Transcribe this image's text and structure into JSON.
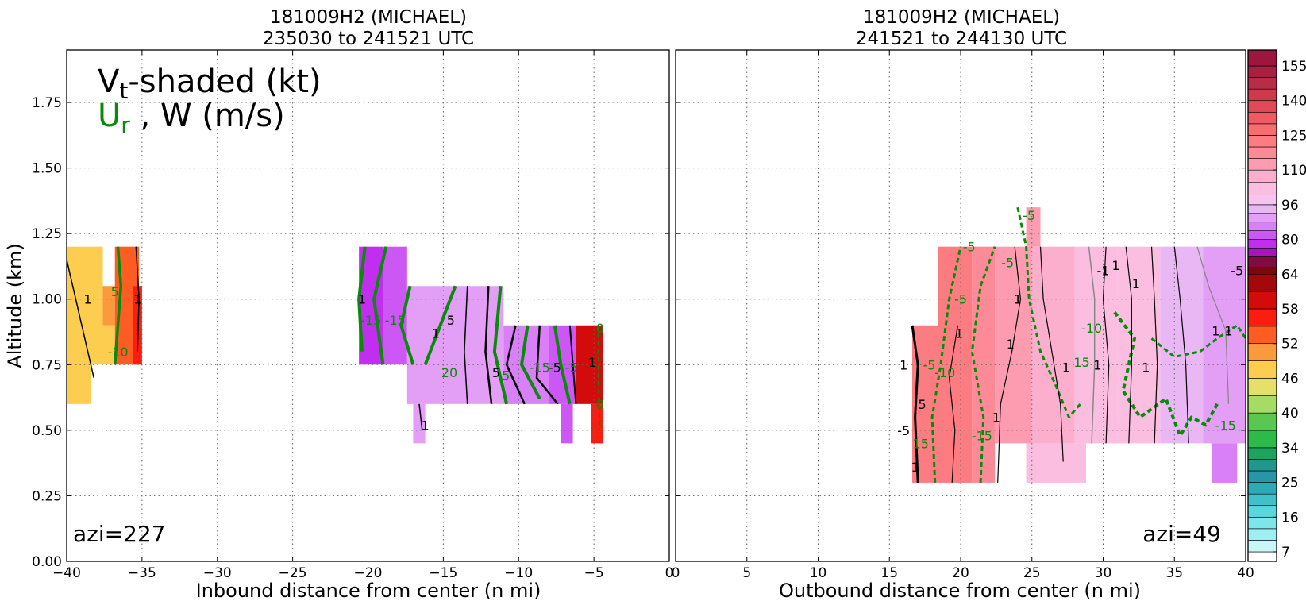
{
  "chart_data": [
    {
      "type": "heatmap",
      "panel": "left",
      "title": [
        "181009H2 (MICHAEL)",
        "235030 to 241521 UTC"
      ],
      "xlabel": "Inbound distance from center (n mi)",
      "ylabel": "Altitude (km)",
      "xlim": [
        -40,
        0
      ],
      "ylim": [
        0,
        1.95
      ],
      "xticks": [
        "−40",
        "−35",
        "−30",
        "−25",
        "−20",
        "−15",
        "−10",
        "−5",
        "0"
      ],
      "yticks": [
        "0.00",
        "0.25",
        "0.50",
        "0.75",
        "1.00",
        "1.25",
        "1.50",
        "1.75"
      ],
      "grid": true,
      "legend_text": {
        "line1_main": "V",
        "line1_sub": "t",
        "line1_rest": "-shaded (kt)",
        "line2_main": "U",
        "line2_sub": "r",
        "line2_rest": " , W (m/s)"
      },
      "annotation": "azi=227",
      "vt_cells": [
        {
          "x0": -40,
          "x1": -38.4,
          "y0": 0.6,
          "y1": 1.2,
          "vt": 46
        },
        {
          "x0": -38.4,
          "x1": -37.6,
          "y0": 0.75,
          "y1": 1.2,
          "vt": 46
        },
        {
          "x0": -37.6,
          "x1": -36.8,
          "y0": 0.9,
          "y1": 1.05,
          "vt": 49
        },
        {
          "x0": -37.6,
          "x1": -36.8,
          "y0": 0.75,
          "y1": 0.9,
          "vt": 46
        },
        {
          "x0": -36.8,
          "x1": -35.2,
          "y0": 0.75,
          "y1": 1.2,
          "vt": 52
        },
        {
          "x0": -35.6,
          "x1": -35.0,
          "y0": 0.75,
          "y1": 1.05,
          "vt": 55
        },
        {
          "x0": -20.6,
          "x1": -19.0,
          "y0": 0.75,
          "y1": 1.2,
          "vt": 78
        },
        {
          "x0": -19.0,
          "x1": -17.4,
          "y0": 0.75,
          "y1": 1.2,
          "vt": 82
        },
        {
          "x0": -17.4,
          "x1": -11.0,
          "y0": 0.6,
          "y1": 1.05,
          "vt": 88
        },
        {
          "x0": -11.0,
          "x1": -8.0,
          "y0": 0.6,
          "y1": 0.9,
          "vt": 85
        },
        {
          "x0": -8.0,
          "x1": -6.2,
          "y0": 0.6,
          "y1": 0.9,
          "vt": 80
        },
        {
          "x0": -6.2,
          "x1": -4.4,
          "y0": 0.6,
          "y1": 0.9,
          "vt": 60
        },
        {
          "x0": -5.2,
          "x1": -4.4,
          "y0": 0.45,
          "y1": 0.6,
          "vt": 55
        },
        {
          "x0": -17.0,
          "x1": -16.2,
          "y0": 0.45,
          "y1": 0.6,
          "vt": 88
        },
        {
          "x0": -7.2,
          "x1": -6.4,
          "y0": 0.45,
          "y1": 0.6,
          "vt": 80
        }
      ],
      "contour_labels": [
        {
          "x": -36.8,
          "y": 1.03,
          "text": "5",
          "color": "green"
        },
        {
          "x": -38.6,
          "y": 1.0,
          "text": "1",
          "color": "black"
        },
        {
          "x": -35.3,
          "y": 1.0,
          "text": "1",
          "color": "black"
        },
        {
          "x": -36.6,
          "y": 0.8,
          "text": "-10",
          "color": "green"
        },
        {
          "x": -20.4,
          "y": 1.0,
          "text": "1",
          "color": "black"
        },
        {
          "x": -19.8,
          "y": 0.92,
          "text": "-15",
          "color": "green"
        },
        {
          "x": -18.2,
          "y": 0.92,
          "text": "-15",
          "color": "green"
        },
        {
          "x": -15.5,
          "y": 0.87,
          "text": "1",
          "color": "black"
        },
        {
          "x": -14.5,
          "y": 0.92,
          "text": "5",
          "color": "black"
        },
        {
          "x": -14.6,
          "y": 0.72,
          "text": "20",
          "color": "green"
        },
        {
          "x": -11.5,
          "y": 0.72,
          "text": "5",
          "color": "black"
        },
        {
          "x": -11.0,
          "y": 0.71,
          "text": "-5",
          "color": "green"
        },
        {
          "x": -8.6,
          "y": 0.74,
          "text": "-15",
          "color": "green"
        },
        {
          "x": -7.6,
          "y": 0.74,
          "text": "-5",
          "color": "black"
        },
        {
          "x": -6.5,
          "y": 0.74,
          "text": "-5",
          "color": "green"
        },
        {
          "x": -5.1,
          "y": 0.76,
          "text": "1",
          "color": "black"
        },
        {
          "x": -4.6,
          "y": 0.89,
          "text": "0",
          "color": "green"
        },
        {
          "x": -4.6,
          "y": 0.6,
          "text": "0",
          "color": "green"
        },
        {
          "x": -16.2,
          "y": 0.52,
          "text": "1",
          "color": "black"
        }
      ]
    },
    {
      "type": "heatmap",
      "panel": "right",
      "title": [
        "181009H2 (MICHAEL)",
        "241521 to 244130 UTC"
      ],
      "xlabel": "Outbound distance from center (n mi)",
      "ylabel": "",
      "xlim": [
        0,
        40
      ],
      "ylim": [
        0,
        1.95
      ],
      "xticks": [
        "0",
        "5",
        "10",
        "15",
        "20",
        "25",
        "30",
        "35",
        "40"
      ],
      "yticks": [],
      "grid": true,
      "annotation": "azi=49",
      "vt_cells": [
        {
          "x0": 16.6,
          "x1": 18.4,
          "y0": 0.3,
          "y1": 0.9,
          "vt": 120
        },
        {
          "x0": 18.4,
          "x1": 20.8,
          "y0": 0.3,
          "y1": 1.2,
          "vt": 122
        },
        {
          "x0": 20.8,
          "x1": 22.4,
          "y0": 0.3,
          "y1": 1.2,
          "vt": 118
        },
        {
          "x0": 22.4,
          "x1": 25.0,
          "y0": 0.45,
          "y1": 1.2,
          "vt": 112
        },
        {
          "x0": 24.6,
          "x1": 25.6,
          "y0": 1.2,
          "y1": 1.35,
          "vt": 112
        },
        {
          "x0": 25.0,
          "x1": 28.0,
          "y0": 0.45,
          "y1": 1.2,
          "vt": 108
        },
        {
          "x0": 24.6,
          "x1": 28.8,
          "y0": 0.3,
          "y1": 0.45,
          "vt": 100
        },
        {
          "x0": 28.0,
          "x1": 31.0,
          "y0": 0.45,
          "y1": 1.2,
          "vt": 104
        },
        {
          "x0": 31.0,
          "x1": 34.0,
          "y0": 0.45,
          "y1": 1.2,
          "vt": 100
        },
        {
          "x0": 34.0,
          "x1": 37.0,
          "y0": 0.45,
          "y1": 1.2,
          "vt": 95
        },
        {
          "x0": 37.0,
          "x1": 40.0,
          "y0": 0.45,
          "y1": 1.2,
          "vt": 90
        },
        {
          "x0": 37.6,
          "x1": 39.4,
          "y0": 0.3,
          "y1": 0.45,
          "vt": 85
        }
      ],
      "contour_labels": [
        {
          "x": 24.8,
          "y": 1.32,
          "text": "-5",
          "color": "green"
        },
        {
          "x": 20.6,
          "y": 1.2,
          "text": "-5",
          "color": "green"
        },
        {
          "x": 23.3,
          "y": 1.14,
          "text": "-5",
          "color": "green"
        },
        {
          "x": 20.0,
          "y": 1.0,
          "text": "-5",
          "color": "green"
        },
        {
          "x": 19.9,
          "y": 0.87,
          "text": "1",
          "color": "black"
        },
        {
          "x": 24.0,
          "y": 1.0,
          "text": "1",
          "color": "black"
        },
        {
          "x": 23.5,
          "y": 0.83,
          "text": "1",
          "color": "black"
        },
        {
          "x": 27.4,
          "y": 0.74,
          "text": "1",
          "color": "black"
        },
        {
          "x": 30.0,
          "y": 1.11,
          "text": "-1",
          "color": "black"
        },
        {
          "x": 30.9,
          "y": 1.13,
          "text": "1",
          "color": "black"
        },
        {
          "x": 32.3,
          "y": 1.06,
          "text": "1",
          "color": "black"
        },
        {
          "x": 39.4,
          "y": 1.11,
          "text": "-5",
          "color": "black"
        },
        {
          "x": 29.2,
          "y": 0.89,
          "text": "-10",
          "color": "green"
        },
        {
          "x": 37.9,
          "y": 0.88,
          "text": "1",
          "color": "black"
        },
        {
          "x": 38.8,
          "y": 0.88,
          "text": "1",
          "color": "black"
        },
        {
          "x": 18.9,
          "y": 0.72,
          "text": "-10",
          "color": "green"
        },
        {
          "x": 17.8,
          "y": 0.75,
          "text": "-5",
          "color": "green"
        },
        {
          "x": 16.0,
          "y": 0.75,
          "text": "1",
          "color": "black"
        },
        {
          "x": 28.5,
          "y": 0.76,
          "text": "15",
          "color": "green"
        },
        {
          "x": 29.6,
          "y": 0.75,
          "text": "1",
          "color": "black"
        },
        {
          "x": 33.0,
          "y": 0.74,
          "text": "1",
          "color": "black"
        },
        {
          "x": 17.3,
          "y": 0.6,
          "text": "5",
          "color": "black"
        },
        {
          "x": 16.0,
          "y": 0.5,
          "text": "-5",
          "color": "black"
        },
        {
          "x": 21.5,
          "y": 0.48,
          "text": "-15",
          "color": "green"
        },
        {
          "x": 22.5,
          "y": 0.55,
          "text": "1",
          "color": "black"
        },
        {
          "x": 17.2,
          "y": 0.45,
          "text": "15",
          "color": "green"
        },
        {
          "x": 16.8,
          "y": 0.36,
          "text": "1",
          "color": "black"
        },
        {
          "x": 38.6,
          "y": 0.52,
          "text": "-15",
          "color": "green"
        }
      ]
    }
  ],
  "colorbar": {
    "tick_labels": [
      "7",
      "16",
      "25",
      "34",
      "40",
      "46",
      "52",
      "58",
      "64",
      "80",
      "96",
      "110",
      "125",
      "140",
      "155"
    ],
    "tick_values": [
      7,
      16,
      25,
      34,
      40,
      46,
      52,
      58,
      64,
      80,
      96,
      110,
      125,
      140,
      155
    ],
    "bands": [
      {
        "lo": 4,
        "hi": 7,
        "color": "#ffffff"
      },
      {
        "lo": 7,
        "hi": 10,
        "color": "#c7f7f7"
      },
      {
        "lo": 10,
        "hi": 13,
        "color": "#9eeff2"
      },
      {
        "lo": 13,
        "hi": 16,
        "color": "#7ce6ea"
      },
      {
        "lo": 16,
        "hi": 19,
        "color": "#5ad6de"
      },
      {
        "lo": 19,
        "hi": 22,
        "color": "#40c0cb"
      },
      {
        "lo": 22,
        "hi": 25,
        "color": "#30a9b6"
      },
      {
        "lo": 25,
        "hi": 28,
        "color": "#2896a4"
      },
      {
        "lo": 28,
        "hi": 31,
        "color": "#20968c"
      },
      {
        "lo": 31,
        "hi": 34,
        "color": "#1ca45e"
      },
      {
        "lo": 34,
        "hi": 37,
        "color": "#2cba48"
      },
      {
        "lo": 37,
        "hi": 40,
        "color": "#5ac850"
      },
      {
        "lo": 40,
        "hi": 43,
        "color": "#a4dc64"
      },
      {
        "lo": 43,
        "hi": 46,
        "color": "#e4e06a"
      },
      {
        "lo": 46,
        "hi": 49,
        "color": "#fccd4e"
      },
      {
        "lo": 49,
        "hi": 52,
        "color": "#fb9a3d"
      },
      {
        "lo": 52,
        "hi": 55,
        "color": "#fd5c22"
      },
      {
        "lo": 55,
        "hi": 58,
        "color": "#fb1d10"
      },
      {
        "lo": 58,
        "hi": 61,
        "color": "#d40b0b"
      },
      {
        "lo": 61,
        "hi": 64,
        "color": "#a50808"
      },
      {
        "lo": 64,
        "hi": 67,
        "color": "#7a0a0a"
      },
      {
        "lo": 67,
        "hi": 72,
        "color": "#7e0c3c"
      },
      {
        "lo": 72,
        "hi": 76,
        "color": "#a615b5"
      },
      {
        "lo": 76,
        "hi": 80,
        "color": "#c22ef0"
      },
      {
        "lo": 80,
        "hi": 84,
        "color": "#cd57f5"
      },
      {
        "lo": 84,
        "hi": 88,
        "color": "#d97ff7"
      },
      {
        "lo": 88,
        "hi": 92,
        "color": "#e29ff5"
      },
      {
        "lo": 92,
        "hi": 96,
        "color": "#eab7f5"
      },
      {
        "lo": 96,
        "hi": 100,
        "color": "#f6c5ef"
      },
      {
        "lo": 100,
        "hi": 105,
        "color": "#fbbee0"
      },
      {
        "lo": 105,
        "hi": 110,
        "color": "#fcaecd"
      },
      {
        "lo": 110,
        "hi": 115,
        "color": "#fd9cb1"
      },
      {
        "lo": 115,
        "hi": 120,
        "color": "#fd8a96"
      },
      {
        "lo": 120,
        "hi": 125,
        "color": "#fc7c82"
      },
      {
        "lo": 125,
        "hi": 130,
        "color": "#fa6d6f"
      },
      {
        "lo": 130,
        "hi": 135,
        "color": "#ef5b62"
      },
      {
        "lo": 135,
        "hi": 140,
        "color": "#e04955"
      },
      {
        "lo": 140,
        "hi": 145,
        "color": "#cc3a4c"
      },
      {
        "lo": 145,
        "hi": 150,
        "color": "#b82d46"
      },
      {
        "lo": 150,
        "hi": 155,
        "color": "#a81f42"
      },
      {
        "lo": 155,
        "hi": 160,
        "color": "#9c1640"
      }
    ]
  }
}
